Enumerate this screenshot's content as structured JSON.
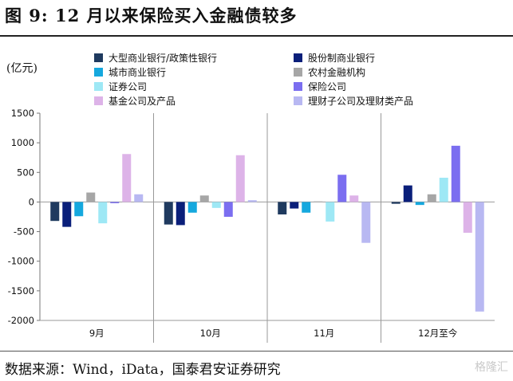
{
  "header": {
    "title": "图 9:  12 月以来保险买入金融债较多"
  },
  "footer": {
    "source": "数据来源：Wind，iData，国泰君安证券研究",
    "watermark": "格隆汇"
  },
  "chart_data": {
    "type": "bar",
    "unit_label": "(亿元)",
    "categories": [
      "9月",
      "10月",
      "11月",
      "12月至今"
    ],
    "ylim": [
      -2000,
      1500
    ],
    "yticks": [
      1500,
      1000,
      500,
      0,
      -500,
      -1000,
      -1500,
      -2000
    ],
    "series": [
      {
        "name": "大型商业银行/政策性银行",
        "color": "#1f3a5f",
        "values": [
          -320,
          -380,
          -210,
          -30
        ]
      },
      {
        "name": "股份制商业银行",
        "color": "#0a1f7a",
        "values": [
          -420,
          -390,
          -110,
          280
        ]
      },
      {
        "name": "城市商业银行",
        "color": "#15a8de",
        "values": [
          -240,
          -180,
          -180,
          -50
        ]
      },
      {
        "name": "农村金融机构",
        "color": "#a6a6a6",
        "values": [
          160,
          110,
          10,
          130
        ]
      },
      {
        "name": "证券公司",
        "color": "#9ee8f5",
        "values": [
          -360,
          -100,
          -330,
          410
        ]
      },
      {
        "name": "保险公司",
        "color": "#7b6ef0",
        "values": [
          -20,
          -250,
          460,
          950
        ]
      },
      {
        "name": "基金公司及产品",
        "color": "#ddb3e8",
        "values": [
          810,
          790,
          110,
          -520
        ]
      },
      {
        "name": "理财子公司及理财类产品",
        "color": "#b8b8f2",
        "values": [
          130,
          30,
          -690,
          -1850
        ]
      }
    ]
  }
}
